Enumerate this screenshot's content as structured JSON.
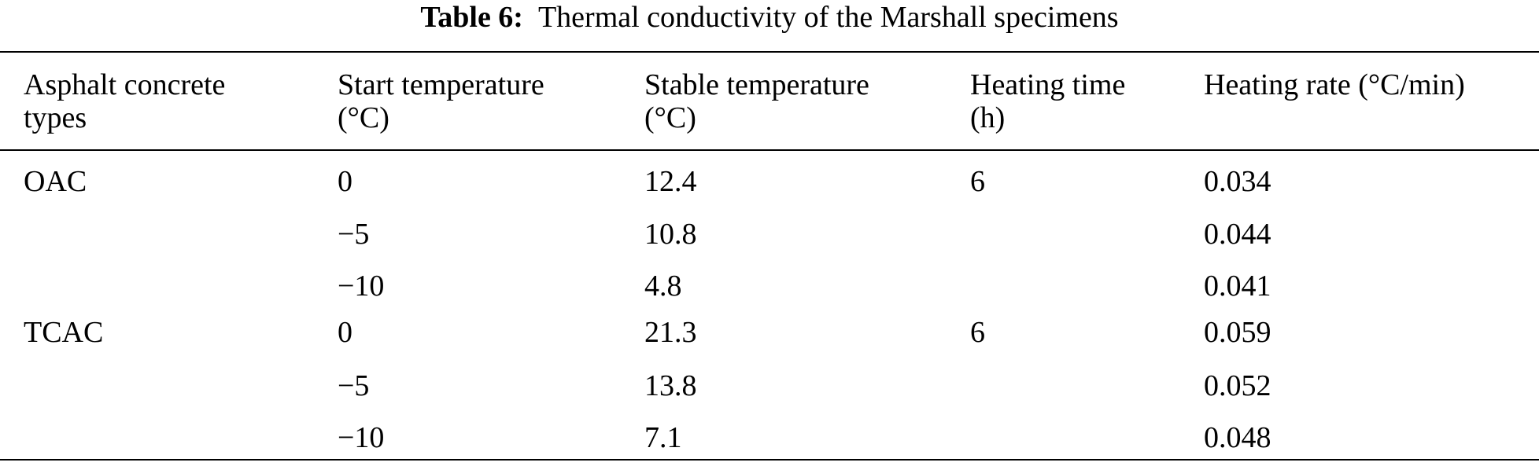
{
  "caption": {
    "label": "Table 6:",
    "text": "Thermal conductivity of the Marshall specimens"
  },
  "table": {
    "headers": [
      [
        "Asphalt concrete",
        "types"
      ],
      [
        "Start temperature",
        "(°C)"
      ],
      [
        "Stable temperature",
        "(°C)"
      ],
      [
        "Heating time",
        "(h)"
      ],
      [
        "Heating rate (°C/min)",
        ""
      ]
    ],
    "rows": [
      [
        "OAC",
        "0",
        "12.4",
        "6",
        "0.034"
      ],
      [
        "",
        "−5",
        "10.8",
        "",
        "0.044"
      ],
      [
        "",
        "−10",
        "4.8",
        "",
        "0.041"
      ],
      [
        "TCAC",
        "0",
        "21.3",
        "6",
        "0.059"
      ],
      [
        "",
        "−5",
        "13.8",
        "",
        "0.052"
      ],
      [
        "",
        "−10",
        "7.1",
        "",
        "0.048"
      ]
    ]
  }
}
